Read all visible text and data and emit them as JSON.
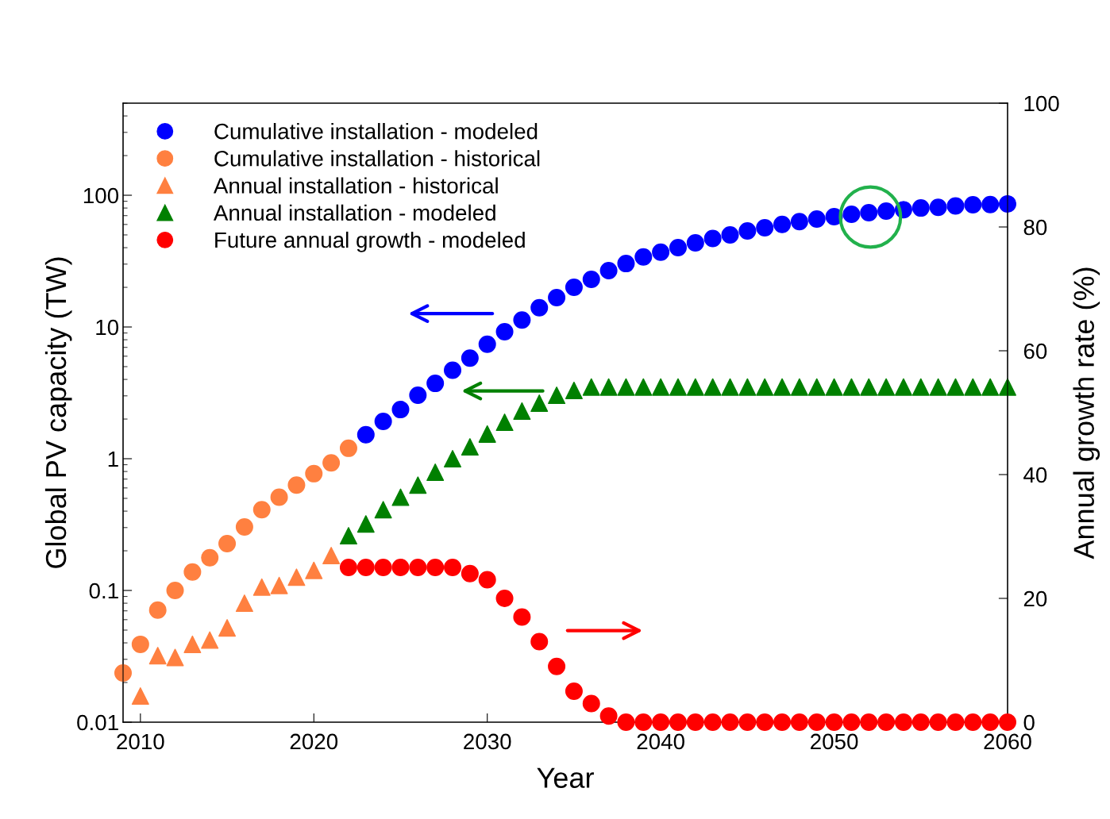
{
  "chart_data": {
    "type": "scatter",
    "xlabel": "Year",
    "ylabel": "Global PV capacity (TW)",
    "y2label": "Annual growth rate (%)",
    "log": "y",
    "xlim": [
      2009,
      2060
    ],
    "xticks": [
      2010,
      2020,
      2030,
      2040,
      2050,
      2060
    ],
    "ylim": [
      0.01,
      500
    ],
    "yticks": [
      0.01,
      0.1,
      1,
      10,
      100
    ],
    "y2lim": [
      0,
      100
    ],
    "y2ticks": [
      0,
      20,
      40,
      60,
      80,
      100
    ],
    "grid": false,
    "legend": "top left",
    "series": [
      {
        "name": "Cumulative installation - modeled",
        "color": "#0000ff",
        "marker": "circle",
        "x": [
          2023,
          2024,
          2025,
          2026,
          2027,
          2028,
          2029,
          2030,
          2031,
          2032,
          2033,
          2034,
          2035,
          2036,
          2037,
          2038,
          2039,
          2040,
          2041,
          2042,
          2043,
          2044,
          2045,
          2046,
          2047,
          2048,
          2049,
          2050,
          2051,
          2052,
          2053,
          2054,
          2055,
          2056,
          2057,
          2058,
          2059,
          2060
        ],
        "values": [
          1.52,
          1.92,
          2.36,
          3.03,
          3.73,
          4.7,
          5.8,
          7.4,
          9.2,
          11.3,
          14,
          16.7,
          20,
          23,
          26.8,
          30.3,
          34,
          37,
          40,
          43.5,
          47,
          50,
          53.6,
          56.6,
          60,
          63,
          66,
          68.8,
          71.7,
          73.7,
          75.8,
          77.7,
          80,
          81,
          83,
          84.7,
          85,
          86
        ]
      },
      {
        "name": "Cumulative installation - historical",
        "color": "#ff8040",
        "marker": "circle",
        "x": [
          2009,
          2010,
          2011,
          2012,
          2013,
          2014,
          2015,
          2016,
          2017,
          2018,
          2019,
          2020,
          2021,
          2022
        ],
        "values": [
          0.0236,
          0.039,
          0.071,
          0.1,
          0.138,
          0.177,
          0.227,
          0.303,
          0.41,
          0.51,
          0.63,
          0.77,
          0.93,
          1.2
        ]
      },
      {
        "name": "Annual installation - historical",
        "color": "#ff8040",
        "marker": "triangle",
        "x": [
          2010,
          2011,
          2012,
          2013,
          2014,
          2015,
          2016,
          2017,
          2018,
          2019,
          2020,
          2021
        ],
        "values": [
          0.0158,
          0.032,
          0.031,
          0.039,
          0.042,
          0.052,
          0.08,
          0.106,
          0.109,
          0.126,
          0.142,
          0.184
        ]
      },
      {
        "name": "Annual installation - modeled",
        "color": "#008000",
        "marker": "triangle",
        "x": [
          2022,
          2023,
          2024,
          2025,
          2026,
          2027,
          2028,
          2029,
          2030,
          2031,
          2032,
          2033,
          2034,
          2035,
          2036,
          2037,
          2038,
          2039,
          2040,
          2041,
          2042,
          2043,
          2044,
          2045,
          2046,
          2047,
          2048,
          2049,
          2050,
          2051,
          2052,
          2053,
          2054,
          2055,
          2056,
          2057,
          2058,
          2059,
          2060
        ],
        "values": [
          0.26,
          0.32,
          0.41,
          0.51,
          0.63,
          0.79,
          1.0,
          1.23,
          1.54,
          1.89,
          2.3,
          2.64,
          3.03,
          3.3,
          3.5,
          3.5,
          3.5,
          3.5,
          3.5,
          3.5,
          3.5,
          3.5,
          3.5,
          3.5,
          3.5,
          3.5,
          3.5,
          3.5,
          3.5,
          3.5,
          3.5,
          3.5,
          3.5,
          3.5,
          3.5,
          3.5,
          3.5,
          3.5,
          3.5
        ]
      },
      {
        "name": "Future annual growth - modeled",
        "color": "#ff0000",
        "marker": "circle",
        "axis": "y2",
        "x": [
          2022,
          2023,
          2024,
          2025,
          2026,
          2027,
          2028,
          2029,
          2030,
          2031,
          2032,
          2033,
          2034,
          2035,
          2036,
          2037,
          2038,
          2039,
          2040,
          2041,
          2042,
          2043,
          2044,
          2045,
          2046,
          2047,
          2048,
          2049,
          2050,
          2051,
          2052,
          2053,
          2054,
          2055,
          2056,
          2057,
          2058,
          2059,
          2060
        ],
        "values": [
          25,
          25,
          25,
          25,
          25,
          25,
          25,
          24,
          23,
          20,
          17,
          13,
          9,
          5,
          3,
          1,
          0,
          0,
          0,
          0,
          0,
          0,
          0,
          0,
          0,
          0,
          0,
          0,
          0,
          0,
          0,
          0,
          0,
          0,
          0,
          0,
          0,
          0,
          0
        ]
      }
    ]
  }
}
